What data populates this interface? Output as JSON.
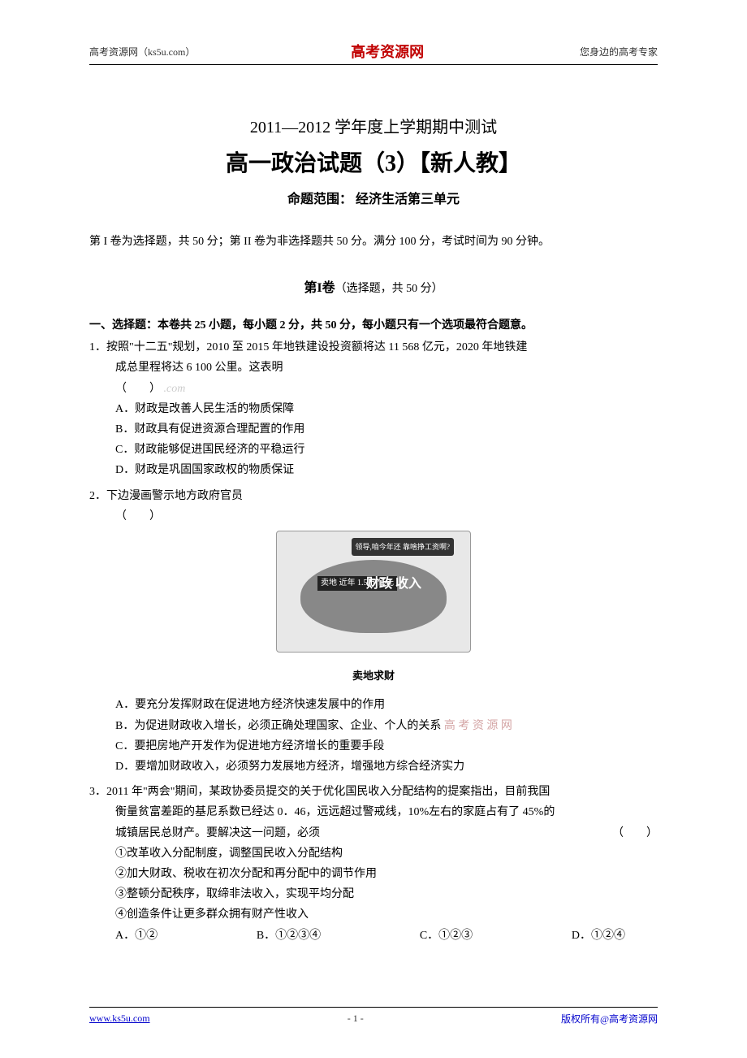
{
  "header": {
    "left": "高考资源网（ks5u.com）",
    "center": "高考资源网",
    "right": "您身边的高考专家"
  },
  "titles": {
    "line1": "2011—2012 学年度上学期期中测试",
    "line2": "高一政治试题（3）【新人教】",
    "line3": "命题范围：  经济生活第三单元"
  },
  "intro": "第 I 卷为选择题，共 50 分；第 II 卷为非选择题共 50 分。满分 100 分，考试时间为 90 分钟。",
  "section1": {
    "title_bold": "第I卷",
    "title_normal": "（选择题，共 50 分）"
  },
  "part1_heading": "一、选择题：本卷共 25 小题，每小题 2 分，共 50 分，每小题只有一个选项最符合题意。",
  "q1": {
    "text": "1．按照\"十二五\"规划，2010 至 2015 年地铁建设投资额将达 11 568  亿元，2020 年地铁建",
    "cont": "成总里程将达 6 100 公里。这表明",
    "paren": "（　　）",
    "a": "A．财政是改善人民生活的物质保障",
    "b": "B．财政具有促进资源合理配置的作用",
    "c": "C．财政能够促进国民经济的平稳运行",
    "d": "D．财政是巩固国家政权的物质保证"
  },
  "q2": {
    "text": "2．下边漫画警示地方政府官员",
    "paren": "（　　）",
    "cartoon": {
      "bubble": "领导,咱今年还\n靠啥挣工资啊?",
      "label1": "卖地\n近年\n1.5万\n亿元",
      "label2": "财政\n收入",
      "caption": "卖地求财"
    },
    "a": "A．要充分发挥财政在促进地方经济快速发展中的作用",
    "b": "B．为促进财政收入增长，必须正确处理国家、企业、个人的关系",
    "b_watermark": "高 考 资 源 网",
    "c": "C．要把房地产开发作为促进地方经济增长的重要手段",
    "d": "D．要增加财政收入，必须努力发展地方经济，增强地方综合经济实力"
  },
  "q3": {
    "text": "3．2011 年\"两会\"期间，某政协委员提交的关于优化国民收入分配结构的提案指出，目前我国",
    "cont1": "衡量贫富差距的基尼系数已经达 0．46，远远超过警戒线，10%左右的家庭占有了 45%的",
    "cont2": "城镇居民总财产。要解决这一问题，必须",
    "paren": "（　　）",
    "s1": "①改革收入分配制度，调整国民收入分配结构",
    "s2": "②加大财政、税收在初次分配和再分配中的调节作用",
    "s3": "③整顿分配秩序，取缔非法收入，实现平均分配",
    "s4": "④创造条件让更多群众拥有财产性收入",
    "a": "A．①②",
    "b": "B．①②③④",
    "c": "C．①②③",
    "d": "D．①②④"
  },
  "footer": {
    "left": "www.ks5u.com",
    "center": "- 1 -",
    "right": "版权所有@高考资源网"
  }
}
